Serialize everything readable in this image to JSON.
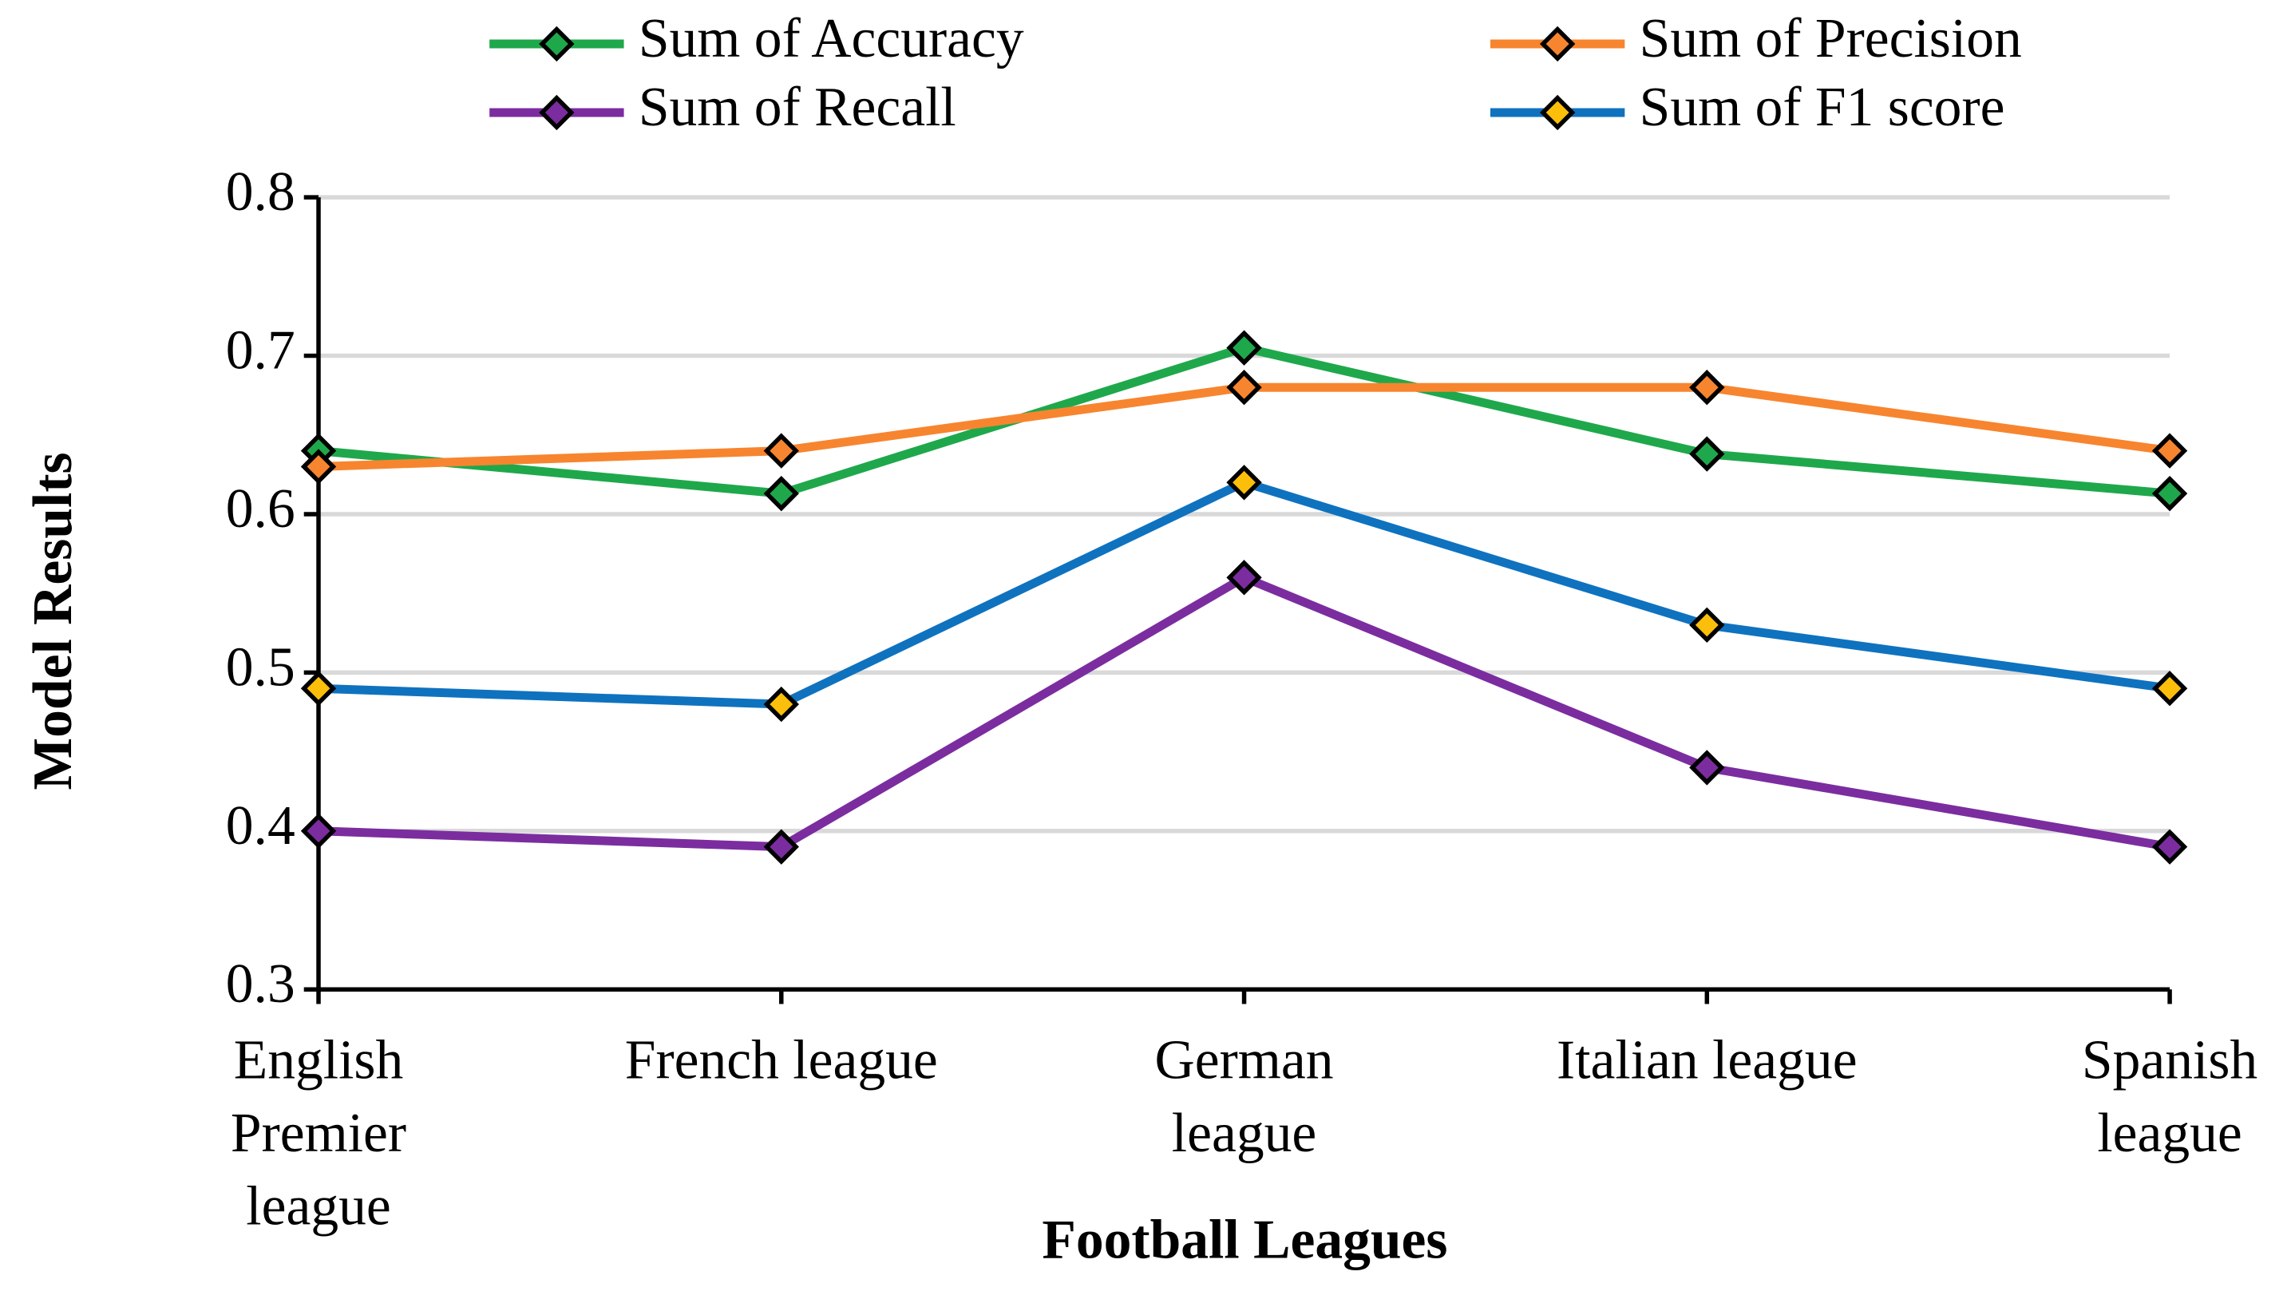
{
  "chart_data": {
    "type": "line",
    "x_label": "Football Leagues",
    "y_label": "Model Results",
    "categories": [
      "English\nPremier\nleague",
      "French league",
      "German\nleague",
      "Italian league",
      "Spanish\nleague"
    ],
    "series": [
      {
        "name": "Sum of Accuracy",
        "color": "#1fa84b",
        "marker_color": "#1fa84b",
        "values": [
          0.64,
          0.613,
          0.705,
          0.638,
          0.613
        ]
      },
      {
        "name": "Sum of Precision",
        "color": "#f7852f",
        "marker_color": "#f7852f",
        "values": [
          0.63,
          0.64,
          0.68,
          0.68,
          0.64
        ]
      },
      {
        "name": "Sum of Recall",
        "color": "#7b2d9f",
        "marker_color": "#7b2d9f",
        "values": [
          0.4,
          0.39,
          0.56,
          0.44,
          0.39
        ]
      },
      {
        "name": "Sum of F1 score",
        "color": "#0f72bf",
        "marker_color": "#fbbf0b",
        "values": [
          0.49,
          0.48,
          0.62,
          0.53,
          0.49
        ]
      }
    ],
    "ylim": [
      0.3,
      0.8
    ],
    "yticks": [
      0.3,
      0.4,
      0.5,
      0.6,
      0.7,
      0.8
    ],
    "grid": true
  }
}
